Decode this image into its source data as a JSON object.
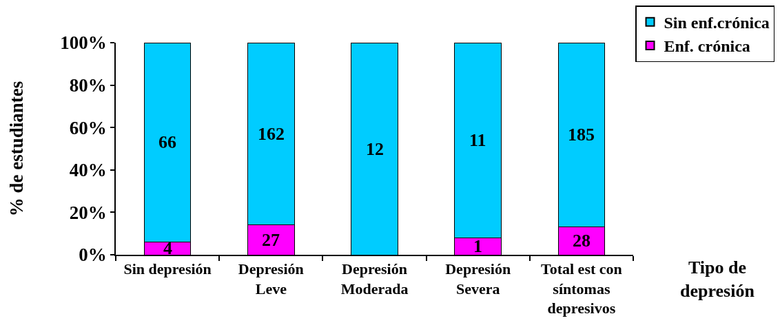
{
  "chart_data": {
    "type": "bar",
    "stacked": true,
    "categories": [
      "Sin depresión",
      "Depresión\nLeve",
      "Depresión\nModerada",
      "Depresión\nSevera",
      "Total est con\nsíntomas\ndepresivos"
    ],
    "series": [
      {
        "name": "Enf. crónica",
        "color": "#ff00ff",
        "values": [
          6,
          14,
          0,
          8,
          13
        ]
      },
      {
        "name": "Sin enf.crónica",
        "color": "#00ccff",
        "values": [
          94,
          86,
          100,
          92,
          87
        ]
      }
    ],
    "annotations": [
      "4",
      "66",
      "27",
      "162",
      "12",
      "1",
      "11",
      "28",
      "185"
    ],
    "ylabel": "% de estudiantes",
    "xlabel": "Tipo de\ndepresión",
    "ylim": [
      0,
      100
    ],
    "yticks": [
      {
        "value": 0,
        "label": "0%"
      },
      {
        "value": 20,
        "label": "20%"
      },
      {
        "value": 40,
        "label": "40%"
      },
      {
        "value": 60,
        "label": "60%"
      },
      {
        "value": 80,
        "label": "80%"
      },
      {
        "value": 100,
        "label": "100%"
      }
    ],
    "grid": false,
    "legend": "top right"
  }
}
